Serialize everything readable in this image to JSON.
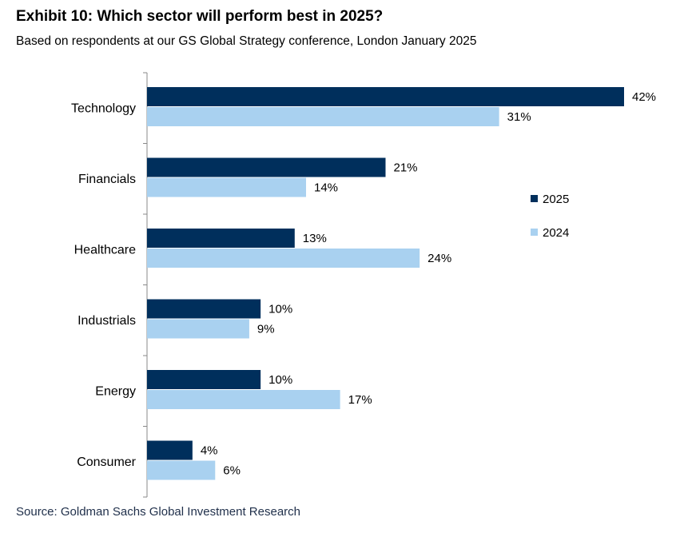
{
  "header": {
    "title": "Exhibit 10: Which sector will perform best in 2025?",
    "subtitle": "Based on respondents at our GS Global Strategy conference, London January 2025"
  },
  "footer": {
    "source": "Source: Goldman Sachs Global Investment Research"
  },
  "chart_data": {
    "type": "bar",
    "orientation": "horizontal",
    "categories": [
      "Technology",
      "Financials",
      "Healthcare",
      "Industrials",
      "Energy",
      "Consumer"
    ],
    "series": [
      {
        "name": "2025",
        "values": [
          42,
          21,
          13,
          10,
          10,
          4
        ],
        "color": "#002f5c"
      },
      {
        "name": "2024",
        "values": [
          31,
          14,
          24,
          9,
          17,
          6
        ],
        "color": "#a9d1f0"
      }
    ],
    "value_format": "{v}%",
    "xlim": [
      0,
      42
    ],
    "grid": false,
    "legend_position": "right"
  }
}
